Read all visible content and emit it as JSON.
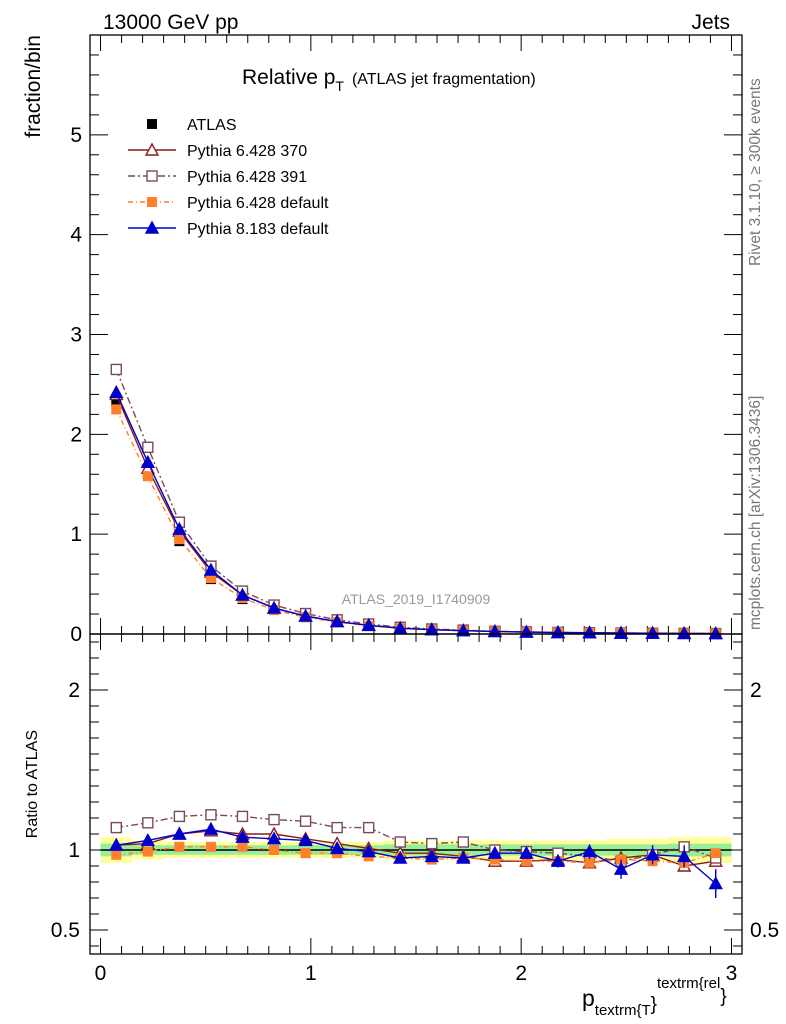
{
  "header": {
    "left": "13000 GeV pp",
    "right": "Jets"
  },
  "side_labels": {
    "rivet": "Rivet 3.1.10, ≥ 300k events",
    "mcplots": "mcplots.cern.ch [arXiv:1306.3436]"
  },
  "chart_data": {
    "type": "line",
    "title_main": "Relative p",
    "title_sub": "T",
    "title_rest": "(ATLAS jet fragmentation)",
    "analysis_label": "ATLAS_2019_I1740909",
    "ylabel_top": "fraction/bin",
    "ylabel_bottom": "Ratio to ATLAS",
    "xlabel_main": "p",
    "xlabel_sub": "textrm{T",
    "xlabel_brace": "}",
    "xlabel_sup": "textrm{rel",
    "xlabel_sup_end": "}",
    "xlim": [
      -0.05,
      3.05
    ],
    "ylim_top": [
      0,
      6
    ],
    "ylim_bottom": [
      0.35,
      2.35
    ],
    "xticks": [
      0,
      1,
      2,
      3
    ],
    "xtick_labels": [
      "0",
      "1",
      "2",
      "3"
    ],
    "yticks_top": [
      0,
      1,
      2,
      3,
      4,
      5
    ],
    "ytick_labels_top": [
      "0",
      "1",
      "2",
      "3",
      "4",
      "5"
    ],
    "yticks_bottom": [
      0.5,
      1,
      2
    ],
    "ytick_labels_bottom_left": [
      "0.5",
      "1",
      "2"
    ],
    "ytick_labels_bottom_right": [
      "0.5",
      "",
      "2"
    ],
    "x": [
      0.075,
      0.225,
      0.375,
      0.525,
      0.675,
      0.825,
      0.975,
      1.125,
      1.275,
      1.425,
      1.575,
      1.725,
      1.875,
      2.025,
      2.175,
      2.325,
      2.475,
      2.625,
      2.775,
      2.925
    ],
    "data": {
      "name": "ATLAS",
      "values": [
        2.33,
        1.6,
        0.93,
        0.55,
        0.35,
        0.24,
        0.17,
        0.12,
        0.085,
        0.06,
        0.045,
        0.035,
        0.027,
        0.02,
        0.016,
        0.013,
        0.01,
        0.008,
        0.006,
        0.005
      ],
      "band_green": [
        0.04,
        0.03,
        0.03,
        0.03,
        0.03,
        0.03,
        0.03,
        0.03,
        0.03,
        0.035,
        0.035,
        0.035,
        0.035,
        0.035,
        0.035,
        0.035,
        0.035,
        0.035,
        0.04,
        0.04
      ],
      "band_yellow": [
        0.08,
        0.06,
        0.05,
        0.05,
        0.05,
        0.05,
        0.05,
        0.05,
        0.05,
        0.06,
        0.06,
        0.06,
        0.06,
        0.06,
        0.06,
        0.06,
        0.07,
        0.07,
        0.08,
        0.08
      ]
    },
    "series": [
      {
        "name": "Pythia 6.428 370",
        "color": "#8b1a1a",
        "dash": "",
        "marker": "triangle-open",
        "values": [
          2.4,
          1.66,
          1.03,
          0.62,
          0.39,
          0.26,
          0.18,
          0.125,
          0.086,
          0.059,
          0.044,
          0.034,
          0.025,
          0.019,
          0.015,
          0.012,
          0.0095,
          0.0078,
          0.0054,
          0.0047
        ],
        "ratio": [
          1.03,
          1.04,
          1.1,
          1.12,
          1.1,
          1.1,
          1.07,
          1.04,
          1.01,
          0.98,
          0.98,
          0.96,
          0.93,
          0.93,
          0.94,
          0.92,
          0.95,
          0.97,
          0.9,
          0.93
        ]
      },
      {
        "name": "Pythia 6.428 391",
        "color": "#7a4a55",
        "dash": "7,3,2,3",
        "marker": "square-open",
        "values": [
          2.65,
          1.87,
          1.12,
          0.68,
          0.43,
          0.29,
          0.205,
          0.142,
          0.1,
          0.067,
          0.05,
          0.039,
          0.027,
          0.021,
          0.016,
          0.0125,
          0.0093,
          0.0078,
          0.0061,
          0.0048
        ],
        "ratio": [
          1.14,
          1.17,
          1.21,
          1.22,
          1.21,
          1.19,
          1.18,
          1.14,
          1.14,
          1.05,
          1.04,
          1.05,
          1.0,
          0.99,
          0.98,
          0.96,
          0.93,
          0.97,
          1.02,
          0.95
        ]
      },
      {
        "name": "Pythia 6.428 default",
        "color": "#ff7f2a",
        "dash": "5,3,1,3",
        "marker": "square-filled",
        "values": [
          2.25,
          1.58,
          0.95,
          0.56,
          0.36,
          0.24,
          0.167,
          0.118,
          0.082,
          0.057,
          0.042,
          0.033,
          0.026,
          0.0185,
          0.015,
          0.012,
          0.0094,
          0.0074,
          0.0055,
          0.0049
        ],
        "ratio": [
          0.97,
          0.99,
          1.02,
          1.02,
          1.02,
          1.0,
          0.98,
          0.98,
          0.96,
          0.95,
          0.94,
          0.95,
          0.94,
          0.93,
          0.93,
          0.92,
          0.94,
          0.93,
          0.92,
          0.98
        ]
      },
      {
        "name": "Pythia 8.183 default",
        "color": "#0000cc",
        "dash": "",
        "marker": "triangle-filled",
        "values": [
          2.42,
          1.72,
          1.05,
          0.64,
          0.39,
          0.26,
          0.18,
          0.125,
          0.087,
          0.057,
          0.043,
          0.033,
          0.026,
          0.0195,
          0.0148,
          0.0128,
          0.0087,
          0.0077,
          0.0057,
          0.004
        ],
        "ratio": [
          1.03,
          1.06,
          1.1,
          1.13,
          1.08,
          1.07,
          1.06,
          1.01,
          0.99,
          0.95,
          0.96,
          0.95,
          0.98,
          0.98,
          0.93,
          0.99,
          0.88,
          0.97,
          0.96,
          0.79
        ],
        "ratio_err": [
          0.01,
          0.01,
          0.01,
          0.01,
          0.01,
          0.01,
          0.015,
          0.015,
          0.02,
          0.02,
          0.025,
          0.03,
          0.03,
          0.035,
          0.04,
          0.045,
          0.06,
          0.06,
          0.07,
          0.09
        ]
      }
    ]
  }
}
